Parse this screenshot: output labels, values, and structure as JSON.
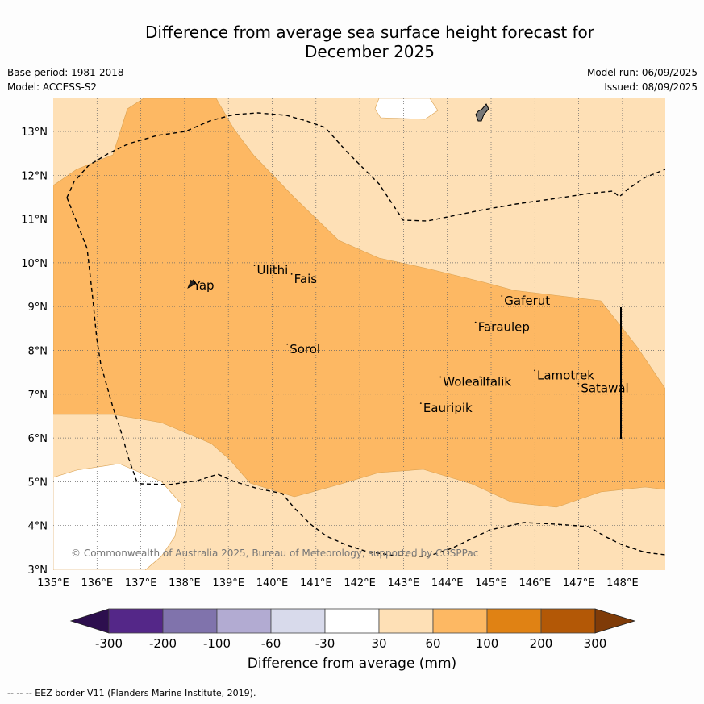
{
  "title_line1": "Difference from average sea surface height forecast for",
  "title_line2": "December 2025",
  "meta_left": [
    "Base period: 1981-2018",
    "Model: ACCESS-S2"
  ],
  "meta_right": [
    "Model run: 06/09/2025",
    "Issued: 08/09/2025"
  ],
  "copyright": "© Commonwealth of Australia 2025, Bureau of Meteorology, supported by COSPPac",
  "footnote": "-- -- -- EEZ border V11 (Flanders Marine Institute, 2019).",
  "map": {
    "lon_labels": [
      "135°E",
      "136°E",
      "137°E",
      "138°E",
      "139°E",
      "140°E",
      "141°E",
      "142°E",
      "143°E",
      "144°E",
      "145°E",
      "146°E",
      "147°E",
      "148°E"
    ],
    "lat_labels": [
      "3°N",
      "4°N",
      "5°N",
      "6°N",
      "7°N",
      "8°N",
      "9°N",
      "10°N",
      "11°N",
      "12°N",
      "13°N"
    ],
    "places": [
      {
        "name": "Yap",
        "lon": 138.2,
        "lat": 9.5
      },
      {
        "name": "Ulithi",
        "lon": 139.65,
        "lat": 9.85
      },
      {
        "name": "Fais",
        "lon": 140.5,
        "lat": 9.65
      },
      {
        "name": "Sorol",
        "lon": 140.4,
        "lat": 8.05
      },
      {
        "name": "Gaferut",
        "lon": 145.3,
        "lat": 9.15
      },
      {
        "name": "Faraulep",
        "lon": 144.7,
        "lat": 8.55
      },
      {
        "name": "Woleai",
        "lon": 143.9,
        "lat": 7.3
      },
      {
        "name": "Ifalik",
        "lon": 144.8,
        "lat": 7.3
      },
      {
        "name": "Lamotrek",
        "lon": 146.05,
        "lat": 7.45
      },
      {
        "name": "Satawal",
        "lon": 147.05,
        "lat": 7.15
      },
      {
        "name": "Eauripik",
        "lon": 143.45,
        "lat": 6.7
      }
    ]
  },
  "colorbar": {
    "labels": [
      "-300",
      "-200",
      "-100",
      "-60",
      "-30",
      "30",
      "60",
      "100",
      "200",
      "300"
    ],
    "colors": [
      "#2d0f4e",
      "#542788",
      "#8073ac",
      "#b2abd2",
      "#d8daeb",
      "#ffffff",
      "#fee0b6",
      "#fdb863",
      "#e08214",
      "#b35806",
      "#7f3b08"
    ],
    "title": "Difference from average (mm)"
  }
}
